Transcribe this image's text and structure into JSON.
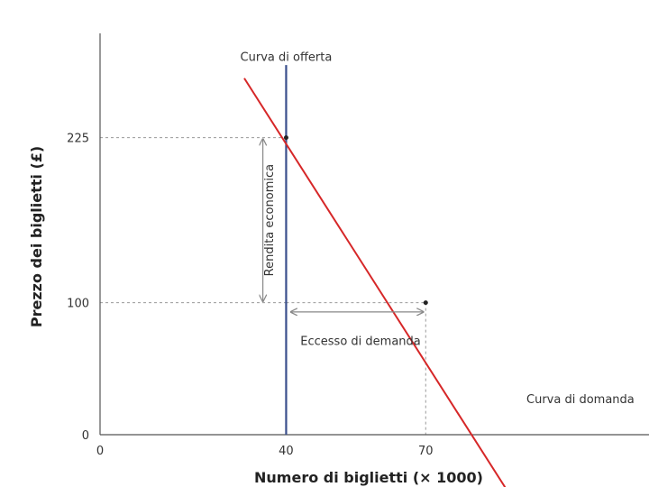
{
  "chart_data": {
    "type": "line",
    "xlabel": "Numero di biglietti (× 1000)",
    "ylabel": "Prezzo dei biglietti (£)",
    "xlim": [
      0,
      118
    ],
    "ylim": [
      0,
      304
    ],
    "x_ticks": [
      {
        "value": 0,
        "label": "0"
      },
      {
        "value": 40,
        "label": "40"
      },
      {
        "value": 70,
        "label": "70"
      }
    ],
    "y_ticks": [
      {
        "value": 0,
        "label": "0"
      },
      {
        "value": 100,
        "label": "100"
      },
      {
        "value": 225,
        "label": "225"
      }
    ],
    "series": [
      {
        "name": "Curva di domanda",
        "color": "#d62728",
        "points": [
          [
            31,
            270
          ],
          [
            88,
            -45
          ]
        ]
      },
      {
        "name": "Curva di offerta",
        "color": "#3a4f8c",
        "points": [
          [
            40,
            0
          ],
          [
            40,
            280
          ]
        ]
      }
    ],
    "points": [
      [
        40,
        225
      ],
      [
        70,
        100
      ]
    ],
    "guides": {
      "h": [
        225,
        100
      ],
      "v": [
        70
      ]
    },
    "annotations": {
      "supply_label": "Curva di offerta",
      "demand_label": "Curva di domanda",
      "rent_label": "Rendita economica",
      "excess_label": "Eccesso di demanda"
    }
  }
}
